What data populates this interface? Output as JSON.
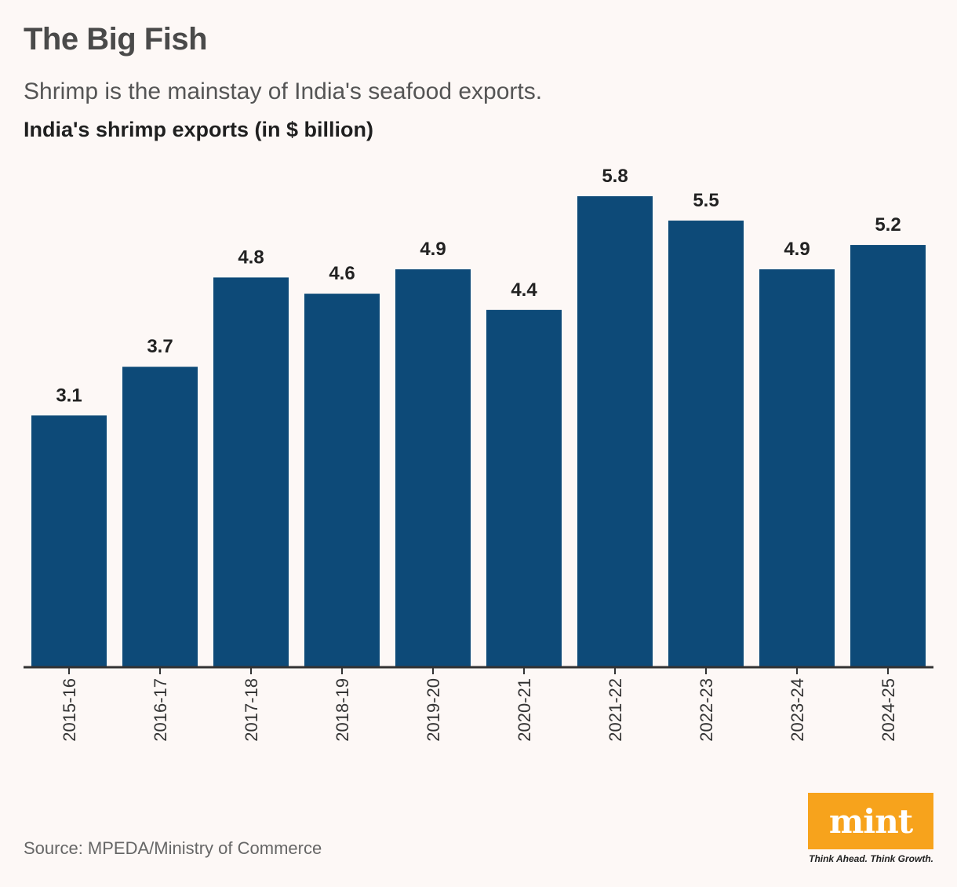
{
  "header": {
    "title": "The Big Fish",
    "subtitle": "Shrimp is the mainstay of India's seafood exports."
  },
  "chart_data": {
    "type": "bar",
    "title": "India's shrimp exports (in $ billion)",
    "categories": [
      "2015-16",
      "2016-17",
      "2017-18",
      "2018-19",
      "2019-20",
      "2020-21",
      "2021-22",
      "2022-23",
      "2023-24",
      "2024-25"
    ],
    "values": [
      3.1,
      3.7,
      4.8,
      4.6,
      4.9,
      4.4,
      5.8,
      5.5,
      4.9,
      5.2
    ],
    "value_labels": [
      "3.1",
      "3.7",
      "4.8",
      "4.6",
      "4.9",
      "4.4",
      "5.8",
      "5.5",
      "4.9",
      "5.2"
    ],
    "xlabel": "",
    "ylabel": "",
    "ylim": [
      0,
      5.8
    ],
    "grid": false,
    "bar_color": "#0d4a78",
    "axis_color": "#333333"
  },
  "footer": {
    "source": "Source: MPEDA/Ministry of Commerce",
    "logo_text": "mint",
    "tagline": "Think Ahead. Think Growth.",
    "logo_color": "#f7a31c"
  }
}
